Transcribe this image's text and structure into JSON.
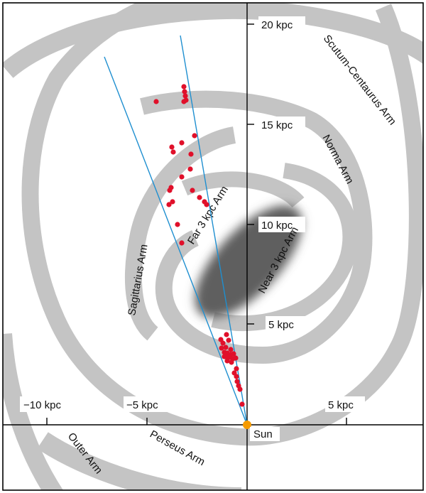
{
  "axis_labels": {
    "y": [
      "20 kpc",
      "15 kpc",
      "10 kpc",
      "5 kpc"
    ],
    "x": [
      "−10 kpc",
      "−5 kpc",
      "5 kpc"
    ]
  },
  "arm_labels": {
    "scutum": "Scutum-Centaurus Arm",
    "norma": "Norma Arm",
    "far3": "Far 3 kpc Arm",
    "near3": "Near 3 kpc Arm",
    "sagittarius": "Sagittarius Arm",
    "perseus": "Perseus Arm",
    "outer": "Outer Arm"
  },
  "sun_label": "Sun",
  "colors": {
    "arm": "#c4c4c4",
    "bar": "#5f5f5f",
    "sightline": "#1f8fd0",
    "source": "#e0102a",
    "sun": "#f59a00"
  }
}
